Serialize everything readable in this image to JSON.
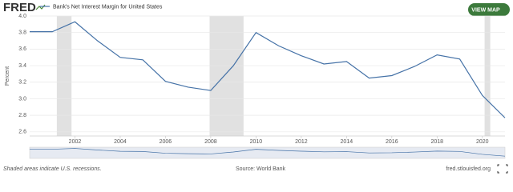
{
  "logo": "FRED",
  "button": "VIEW MAP",
  "footer": {
    "note": "Shaded areas indicate U.S. recessions.",
    "source": "Source: World Bank",
    "site": "fred.stlouisfed.org"
  },
  "chart_data": {
    "type": "line",
    "ylabel": "Percent",
    "x": [
      2000,
      2001,
      2002,
      2003,
      2004,
      2005,
      2006,
      2007,
      2008,
      2009,
      2010,
      2011,
      2012,
      2013,
      2014,
      2015,
      2016,
      2017,
      2018,
      2019,
      2020,
      2021
    ],
    "series": [
      {
        "name": "Bank's Net Interest Margin for United States",
        "color": "#4572a7",
        "values": [
          3.81,
          3.81,
          3.93,
          3.7,
          3.5,
          3.47,
          3.21,
          3.14,
          3.1,
          3.4,
          3.8,
          3.64,
          3.52,
          3.42,
          3.45,
          3.25,
          3.28,
          3.39,
          3.53,
          3.48,
          3.04,
          2.77
        ]
      }
    ],
    "recessions": [
      [
        2001.2,
        2001.85
      ],
      [
        2007.95,
        2009.45
      ],
      [
        2020.1,
        2020.35
      ]
    ],
    "recession_color": "#e1e1e1",
    "xlim": [
      2000,
      2021
    ],
    "xticks": [
      2002,
      2004,
      2006,
      2008,
      2010,
      2012,
      2014,
      2016,
      2018,
      2020
    ],
    "ylim": [
      2.55,
      4.0
    ],
    "yticks": [
      {
        "value": 2.6,
        "label": "2.6"
      },
      2.8,
      {
        "value": 3.0,
        "label": "3.0"
      },
      3.2,
      3.4,
      3.6,
      3.8,
      {
        "value": 4.0,
        "label": "4.0"
      }
    ],
    "grid": true
  }
}
